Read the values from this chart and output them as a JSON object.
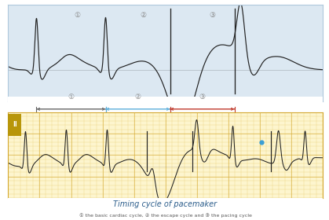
{
  "title": "Timing cycle of pacemaker",
  "subtitle": "① the basic cardiac cycle, ② the escape cycle and ③ the pacing cycle",
  "top_bg": "#dce8f2",
  "bottom_bg": "#fdf5ce",
  "grid_color_minor": "#e8c96e",
  "grid_color_major": "#d4a830",
  "ecg_color": "#222222",
  "arrow1_color": "#666666",
  "arrow2_color": "#5aaedb",
  "arrow3_color": "#c0392b",
  "label_color": "#888888",
  "label1": "①",
  "label2": "②",
  "label3": "③",
  "dot_color": "#3b9fd4",
  "lead_label": "II",
  "lead_label_bg": "#b8960a",
  "title_color": "#2a5c8a",
  "subtitle_color": "#555555",
  "figure_width": 4.19,
  "figure_height": 2.8,
  "top_border_color": "#aec8dc"
}
